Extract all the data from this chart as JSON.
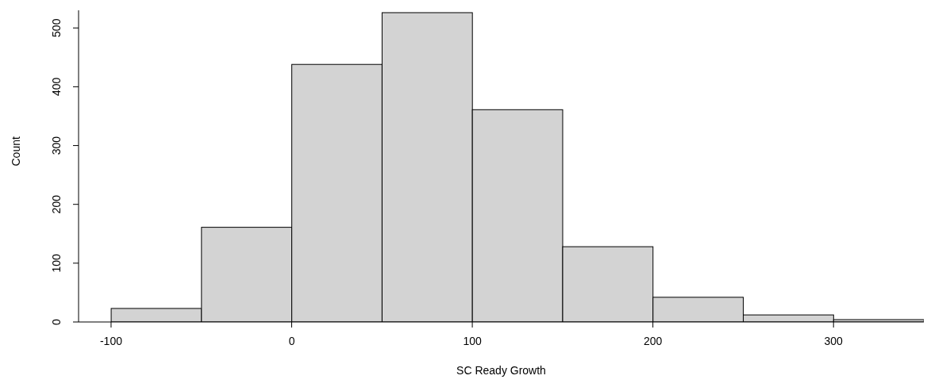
{
  "chart_data": {
    "type": "histogram",
    "xlabel": "SC Ready Growth",
    "ylabel": "Count",
    "bins": [
      -100,
      -50,
      0,
      50,
      100,
      150,
      200,
      250,
      300,
      350
    ],
    "values": [
      23,
      161,
      438,
      526,
      361,
      128,
      42,
      12,
      4
    ],
    "color": "#d3d3d3",
    "xlim": [
      -118,
      350
    ],
    "xticks": [
      -100,
      0,
      100,
      200,
      300
    ],
    "ylim": [
      0,
      530
    ],
    "yticks": [
      0,
      100,
      200,
      300,
      400,
      500
    ],
    "grid": false
  }
}
